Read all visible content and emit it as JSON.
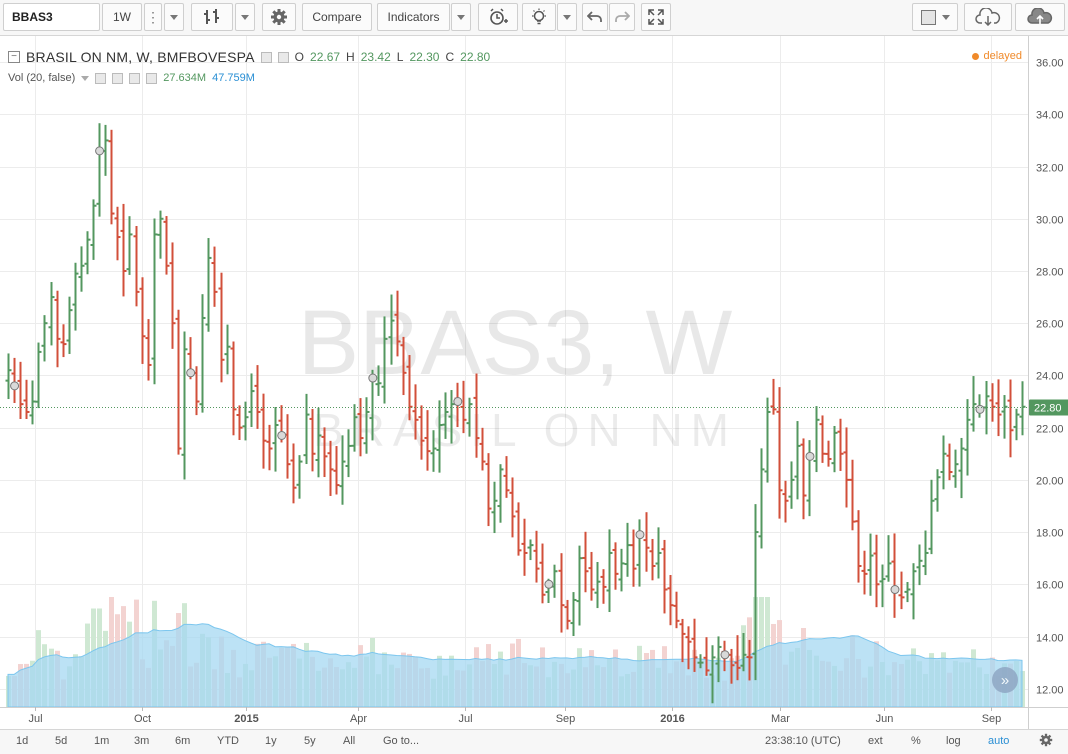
{
  "toolbar": {
    "symbol": "BBAS3",
    "interval": "1W",
    "compare_label": "Compare",
    "indicators_label": "Indicators"
  },
  "legend": {
    "title": "BRASIL ON NM, W, BMFBOVESPA",
    "o_label": "O",
    "o_value": "22.67",
    "h_label": "H",
    "h_value": "23.42",
    "l_label": "L",
    "l_value": "22.30",
    "c_label": "C",
    "c_value": "22.80",
    "volume_label": "Vol (20, false)",
    "volume_value": "27.634M",
    "volume_ma_value": "47.759M",
    "delayed": "delayed"
  },
  "watermark": {
    "line1": "BBAS3, W",
    "line2": "BRASIL ON NM"
  },
  "bottom_bar": {
    "ranges": [
      "1d",
      "5d",
      "1m",
      "3m",
      "6m",
      "YTD",
      "1y",
      "5y",
      "All"
    ],
    "goto": "Go to...",
    "time": "23:38:10 (UTC)",
    "ext": "ext",
    "percent": "%",
    "log": "log",
    "auto": "auto"
  },
  "colors": {
    "up": "#53975f",
    "down": "#d24f3a",
    "volume_up": "#cfe8d3",
    "volume_down": "#f3d3d1",
    "volume_ma_fill": "#a6d8f2",
    "volume_ma_line": "#7cc6ee",
    "delayed": "#f08a2a"
  },
  "icons": [
    "bar-style-icon",
    "settings-gear-icon",
    "alert-clock-icon",
    "lightbulb-icon",
    "undo-icon",
    "redo-icon",
    "fullscreen-icon",
    "cloud-download-icon",
    "cloud-upload-icon",
    "scroll-forward-icon"
  ],
  "chart_data": {
    "type": "ohlc-bar",
    "y_axis_ticks": [
      "36.00",
      "34.00",
      "32.00",
      "30.00",
      "28.00",
      "26.00",
      "24.00",
      "22.00",
      "20.00",
      "18.00",
      "16.00",
      "14.00",
      "12.00"
    ],
    "y_range": [
      11.3,
      37.0
    ],
    "last_price": 22.8,
    "last_price_label": "22.80",
    "x_axis_labels": [
      "Jul",
      "Oct",
      "2015",
      "Apr",
      "Jul",
      "Sep",
      "2016",
      "Mar",
      "Jun",
      "Sep"
    ],
    "close_series": [
      24.2,
      23.6,
      22.9,
      22.6,
      23.0,
      24.9,
      26.0,
      27.0,
      25.4,
      25.2,
      26.5,
      27.9,
      28.2,
      29.2,
      30.5,
      32.6,
      33.0,
      30.2,
      29.3,
      28.0,
      29.4,
      27.2,
      25.5,
      24.4,
      29.4,
      30.0,
      28.2,
      26.0,
      21.2,
      25.0,
      24.1,
      23.0,
      26.2,
      28.5,
      27.2,
      24.6,
      25.1,
      22.7,
      22.0,
      22.4,
      23.4,
      22.6,
      21.5,
      21.2,
      22.1,
      21.7,
      20.6,
      19.7,
      20.7,
      22.5,
      21.0,
      21.7,
      20.9,
      20.4,
      19.8,
      20.7,
      21.3,
      22.4,
      21.6,
      22.6,
      23.9,
      23.7,
      25.4,
      26.1,
      25.3,
      24.1,
      22.8,
      22.3,
      21.5,
      21.1,
      21.2,
      22.1,
      22.6,
      22.9,
      23.0,
      22.3,
      22.9,
      21.6,
      20.7,
      18.9,
      19.2,
      20.4,
      19.6,
      18.6,
      17.3,
      17.2,
      17.5,
      16.6,
      15.6,
      16.0,
      16.5,
      15.2,
      14.6,
      15.4,
      17.0,
      16.5,
      15.8,
      16.1,
      15.9,
      17.2,
      16.4,
      16.8,
      17.5,
      16.6,
      17.9,
      17.4,
      16.7,
      17.2,
      15.8,
      15.2,
      14.6,
      14.1,
      13.8,
      13.2,
      13.0,
      12.7,
      13.2,
      13.6,
      13.3,
      12.9,
      12.8,
      13.3,
      13.2,
      18.0,
      20.4,
      22.6,
      22.7,
      19.6,
      19.2,
      20.0,
      21.3,
      19.4,
      20.9,
      22.3,
      21.0,
      20.8,
      21.8,
      21.0,
      20.0,
      18.4,
      16.7,
      16.4,
      17.1,
      16.0,
      16.2,
      16.8,
      15.8,
      15.5,
      15.8,
      16.5,
      16.9,
      17.2,
      19.2,
      20.1,
      21.0,
      20.3,
      20.6,
      21.2,
      22.3,
      22.9,
      22.7,
      23.2,
      22.8,
      22.5,
      22.8,
      21.9,
      22.5,
      22.8
    ],
    "volume_axis_note": "volume overlay, no printed axis"
  }
}
